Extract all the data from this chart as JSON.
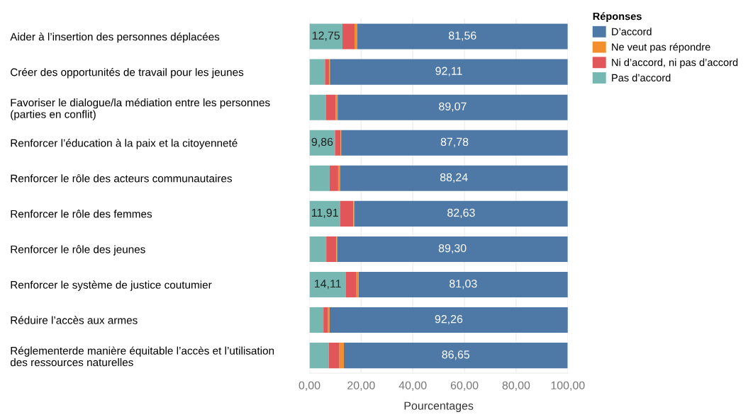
{
  "chart_data": {
    "type": "bar",
    "orientation": "horizontal",
    "stacked": true,
    "categories": [
      "Aider à l’insertion des personnes déplacées",
      "Créer des opportunités de travail pour les jeunes",
      "Favoriser le dialogue/la médiation entre les personnes\n(parties en conflit)",
      "Renforcer l’éducation à la paix et la citoyenneté",
      "Renforcer le rôle des acteurs communautaires",
      "Renforcer le rôle des femmes",
      "Renforcer le rôle des jeunes",
      "Renforcer le système de justice coutumier",
      "Réduire l’accès aux armes",
      "Réglementerde manière équitable l’accès et l’utilisation\ndes ressources naturelles"
    ],
    "series": [
      {
        "name": "Pas d’accord",
        "color": "#76b7b2",
        "values": [
          12.75,
          6.0,
          6.3,
          9.86,
          7.8,
          11.91,
          6.5,
          14.11,
          5.4,
          7.5
        ],
        "value_labels": [
          "12,75",
          null,
          null,
          "9,86",
          null,
          "11,91",
          null,
          "14,11",
          null,
          null
        ]
      },
      {
        "name": "Ni d’accord, ni pas d’accord",
        "color": "#e15759",
        "values": [
          4.7,
          1.6,
          3.9,
          2.2,
          3.3,
          5.1,
          3.9,
          4.1,
          1.8,
          4.1
        ]
      },
      {
        "name": "Ne veut pas répondre",
        "color": "#f28e2b",
        "values": [
          1.0,
          0.3,
          0.7,
          0.2,
          0.7,
          0.4,
          0.3,
          0.8,
          0.6,
          1.7
        ]
      },
      {
        "name": "D’accord",
        "color": "#4e79a7",
        "values": [
          81.56,
          92.11,
          89.07,
          87.78,
          88.24,
          82.63,
          89.3,
          81.03,
          92.26,
          86.65
        ],
        "value_labels": [
          "81,56",
          "92,11",
          "89,07",
          "87,78",
          "88,24",
          "82,63",
          "89,30",
          "81,03",
          "92,26",
          "86,65"
        ]
      }
    ],
    "xlim": [
      0,
      100
    ],
    "xticks": [
      {
        "value": 0,
        "label": "0,00"
      },
      {
        "value": 20,
        "label": "20,00"
      },
      {
        "value": 40,
        "label": "40,00"
      },
      {
        "value": 60,
        "label": "60,00"
      },
      {
        "value": 80,
        "label": "80,00"
      },
      {
        "value": 100,
        "label": "100,00"
      }
    ],
    "xlabel": "Pourcentages",
    "legend_title": "Réponses",
    "legend": "top right",
    "grid": "x"
  }
}
